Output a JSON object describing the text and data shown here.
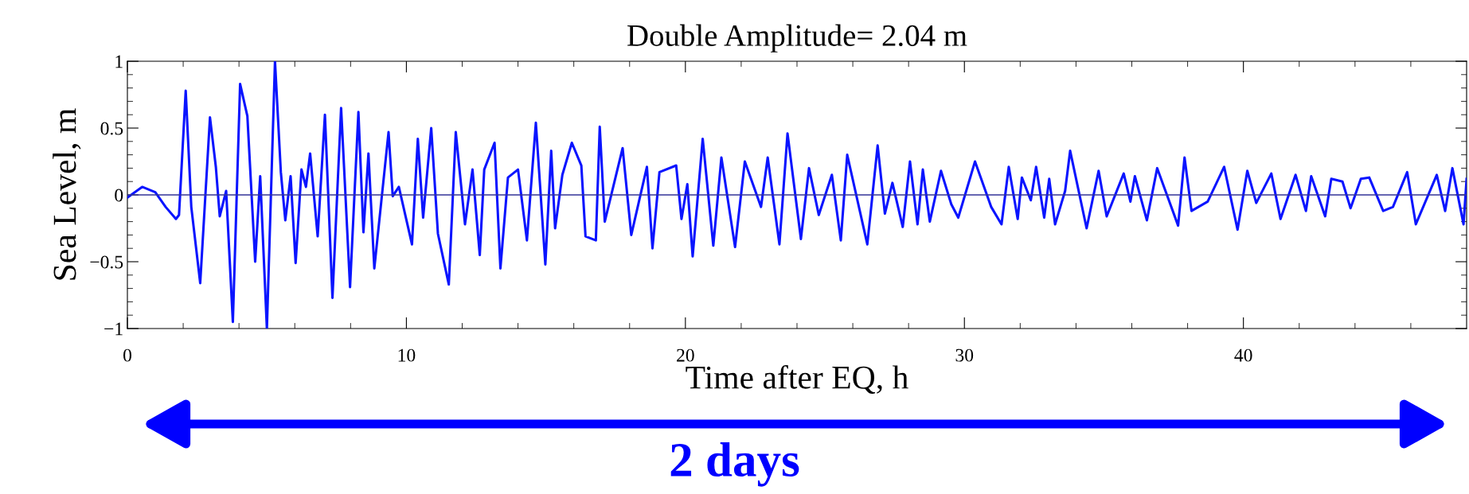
{
  "chart_data": {
    "type": "line",
    "title": "Double Amplitude= 2.04 m",
    "xlabel": "Time after EQ, h",
    "ylabel": "Sea Level, m",
    "annotations": [
      "2 days"
    ],
    "xlim": [
      0,
      48
    ],
    "ylim": [
      -1,
      1
    ],
    "xticks": [
      0,
      {
        "value": 2,
        "label": null
      },
      {
        "value": 4,
        "label": null
      },
      {
        "value": 6,
        "label": null
      },
      {
        "value": 8,
        "label": null
      },
      10,
      {
        "value": 12,
        "label": null
      },
      {
        "value": 14,
        "label": null
      },
      {
        "value": 16,
        "label": null
      },
      {
        "value": 18,
        "label": null
      },
      20,
      {
        "value": 22,
        "label": null
      },
      {
        "value": 24,
        "label": null
      },
      {
        "value": 26,
        "label": null
      },
      {
        "value": 28,
        "label": null
      },
      30,
      {
        "value": 32,
        "label": null
      },
      {
        "value": 34,
        "label": null
      },
      {
        "value": 36,
        "label": null
      },
      {
        "value": 38,
        "label": null
      },
      40,
      {
        "value": 42,
        "label": null
      },
      {
        "value": 44,
        "label": null
      },
      {
        "value": 46,
        "label": null
      }
    ],
    "yticks": [
      {
        "value": -1,
        "label": "−1"
      },
      {
        "value": -0.9,
        "label": null
      },
      {
        "value": -0.8,
        "label": null
      },
      {
        "value": -0.7,
        "label": null
      },
      {
        "value": -0.6,
        "label": null
      },
      {
        "value": -0.5,
        "label": "−0.5"
      },
      {
        "value": -0.4,
        "label": null
      },
      {
        "value": -0.3,
        "label": null
      },
      {
        "value": -0.2,
        "label": null
      },
      {
        "value": -0.1,
        "label": null
      },
      0,
      {
        "value": 0.1,
        "label": null
      },
      {
        "value": 0.2,
        "label": null
      },
      {
        "value": 0.3,
        "label": null
      },
      {
        "value": 0.4,
        "label": null
      },
      0.5,
      {
        "value": 0.6,
        "label": null
      },
      {
        "value": 0.7,
        "label": null
      },
      {
        "value": 0.8,
        "label": null
      },
      {
        "value": 0.9,
        "label": null
      },
      1
    ],
    "grid": false,
    "legend": false,
    "marker": "none",
    "line_style": "solid",
    "ref_lines": [
      {
        "axis": "y",
        "value": 0,
        "color": "#333399"
      }
    ],
    "series": [
      {
        "color": "#0a14ff",
        "x": [
          0,
          0.53,
          1.0,
          1.37,
          1.74,
          1.85,
          2.09,
          2.29,
          2.61,
          2.96,
          3.17,
          3.31,
          3.54,
          3.78,
          4.04,
          4.3,
          4.58,
          4.76,
          5.0,
          5.29,
          5.5,
          5.66,
          5.85,
          6.03,
          6.24,
          6.4,
          6.55,
          6.82,
          7.08,
          7.35,
          7.66,
          7.98,
          8.28,
          8.46,
          8.64,
          8.85,
          9.36,
          9.51,
          9.73,
          10.2,
          10.41,
          10.6,
          10.89,
          11.13,
          11.52,
          11.77,
          12.1,
          12.37,
          12.63,
          12.79,
          13.16,
          13.37,
          13.64,
          14.0,
          14.32,
          14.64,
          14.98,
          15.19,
          15.33,
          15.59,
          15.93,
          16.27,
          16.42,
          16.79,
          16.93,
          17.11,
          17.75,
          18.06,
          18.62,
          18.82,
          19.07,
          19.67,
          19.86,
          20.07,
          20.26,
          20.62,
          21.0,
          21.29,
          21.78,
          22.13,
          22.71,
          22.95,
          23.37,
          23.66,
          24.14,
          24.43,
          24.78,
          25.25,
          25.57,
          25.8,
          26.52,
          26.89,
          27.15,
          27.42,
          27.79,
          28.05,
          28.32,
          28.51,
          28.76,
          29.16,
          29.53,
          29.78,
          30.38,
          30.96,
          31.33,
          31.59,
          31.91,
          32.06,
          32.38,
          32.57,
          32.86,
          33.04,
          33.25,
          33.61,
          33.79,
          34.38,
          34.81,
          35.1,
          35.71,
          35.95,
          36.11,
          36.54,
          36.91,
          37.66,
          37.89,
          38.14,
          38.72,
          39.31,
          39.79,
          40.14,
          40.46,
          41.0,
          41.33,
          41.87,
          42.24,
          42.43,
          42.93,
          43.15,
          43.55,
          43.84,
          44.21,
          44.51,
          45.01,
          45.36,
          45.87,
          46.18,
          46.93,
          47.23,
          47.49,
          47.89,
          48.0
        ],
        "values": [
          -0.02,
          0.06,
          0.02,
          -0.09,
          -0.18,
          -0.15,
          0.78,
          -0.09,
          -0.66,
          0.58,
          0.21,
          -0.16,
          0.03,
          -0.95,
          0.83,
          0.59,
          -0.5,
          0.14,
          -1.0,
          1.0,
          0.17,
          -0.19,
          0.14,
          -0.51,
          0.19,
          0.06,
          0.31,
          -0.31,
          0.6,
          -0.77,
          0.65,
          -0.69,
          0.62,
          -0.28,
          0.31,
          -0.55,
          0.47,
          -0.01,
          0.06,
          -0.37,
          0.42,
          -0.17,
          0.5,
          -0.29,
          -0.67,
          0.47,
          -0.22,
          0.19,
          -0.45,
          0.19,
          0.39,
          -0.55,
          0.13,
          0.19,
          -0.34,
          0.54,
          -0.52,
          0.33,
          -0.25,
          0.15,
          0.39,
          0.22,
          -0.31,
          -0.34,
          0.51,
          -0.2,
          0.35,
          -0.3,
          0.21,
          -0.4,
          0.17,
          0.22,
          -0.18,
          0.08,
          -0.46,
          0.42,
          -0.38,
          0.28,
          -0.39,
          0.25,
          -0.09,
          0.28,
          -0.37,
          0.46,
          -0.33,
          0.2,
          -0.15,
          0.15,
          -0.34,
          0.3,
          -0.37,
          0.37,
          -0.14,
          0.09,
          -0.24,
          0.25,
          -0.22,
          0.19,
          -0.2,
          0.18,
          -0.07,
          -0.17,
          0.25,
          -0.09,
          -0.22,
          0.21,
          -0.18,
          0.13,
          -0.04,
          0.21,
          -0.17,
          0.12,
          -0.22,
          0.03,
          0.33,
          -0.25,
          0.18,
          -0.16,
          0.16,
          -0.05,
          0.14,
          -0.19,
          0.2,
          -0.23,
          0.28,
          -0.12,
          -0.05,
          0.21,
          -0.26,
          0.18,
          -0.06,
          0.16,
          -0.18,
          0.15,
          -0.12,
          0.14,
          -0.16,
          0.12,
          0.1,
          -0.1,
          0.12,
          0.13,
          -0.12,
          -0.09,
          0.17,
          -0.22,
          0.15,
          -0.12,
          0.2,
          -0.22,
          0.12
        ]
      }
    ]
  }
}
